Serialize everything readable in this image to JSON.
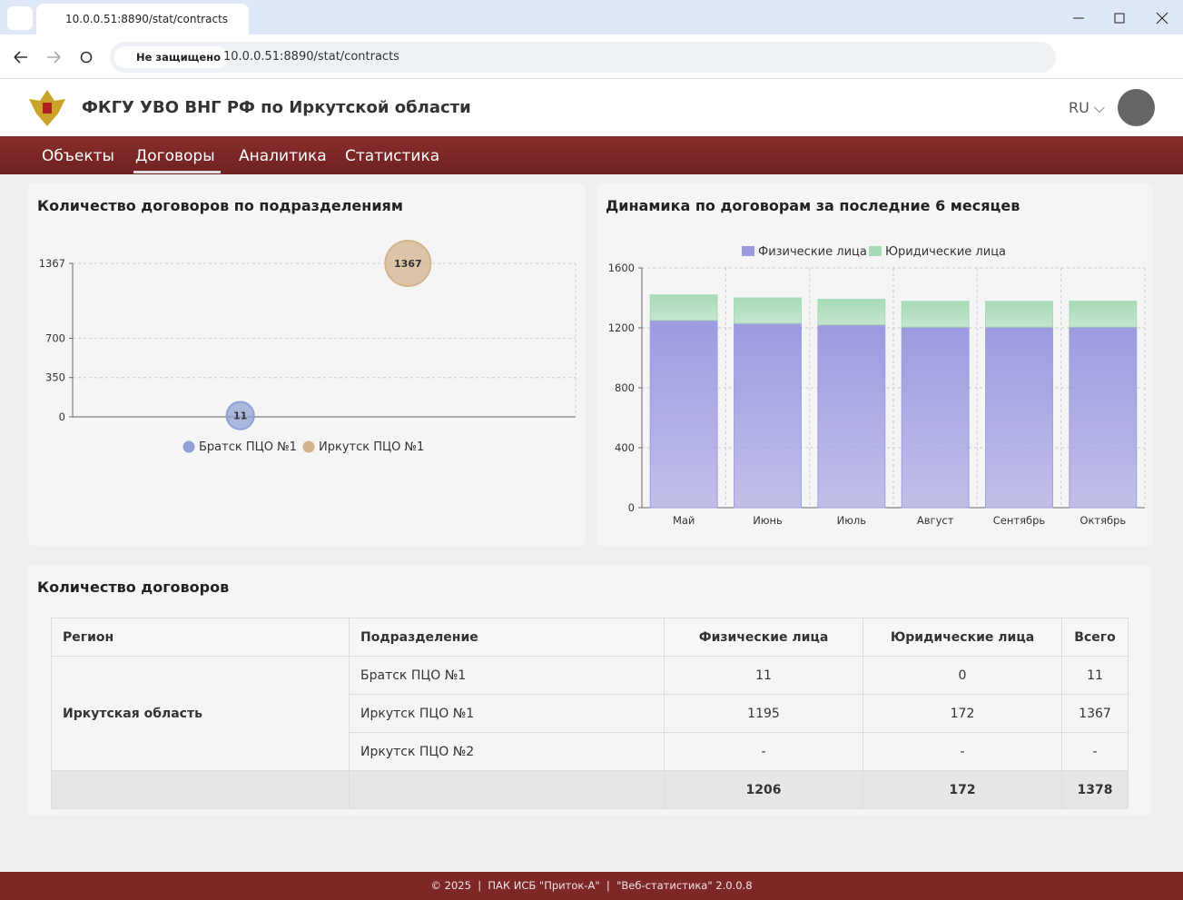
{
  "browser": {
    "tab_title": "10.0.0.51:8890/stat/contracts",
    "security": "Не защищено",
    "url": "10.0.0.51:8890/stat/contracts"
  },
  "header": {
    "title": "ФКГУ УВО ВНГ РФ по Иркутской области",
    "language": "RU"
  },
  "nav": {
    "items": [
      "Объекты",
      "Договоры",
      "Аналитика",
      "Статистика"
    ],
    "active": 1
  },
  "chart_data": [
    {
      "type": "bubble",
      "title": "Количество договоров по подразделениям",
      "categories": [
        null,
        null
      ],
      "series": [
        {
          "name": "Братск ПЦО №1",
          "color": "#8fa1d4",
          "values": [
            11,
            null
          ]
        },
        {
          "name": "Иркутск ПЦО №1",
          "color": "#d2b38c",
          "values": [
            null,
            1367
          ]
        }
      ],
      "ylim": [
        0,
        1367
      ],
      "yticks": [
        0,
        350,
        700,
        1367
      ],
      "grid": true,
      "legend": "bottom"
    },
    {
      "type": "stacked-bar",
      "title": "Динамика по договорам за последние 6 месяцев",
      "categories": [
        "Май",
        "Июнь",
        "Июль",
        "Август",
        "Сентябрь",
        "Октябрь"
      ],
      "series": [
        {
          "name": "Физические лица",
          "color": "#9d9be0",
          "values": [
            1250,
            1230,
            1220,
            1205,
            1205,
            1206
          ]
        },
        {
          "name": "Юридические лица",
          "color": "#a6dbb6",
          "values": [
            170,
            170,
            170,
            172,
            172,
            172
          ]
        }
      ],
      "ylim": [
        0,
        1600
      ],
      "yticks": [
        0,
        400,
        800,
        1200,
        1600
      ],
      "grid": true,
      "legend": "top"
    }
  ],
  "table": {
    "title": "Количество договоров",
    "columns": [
      "Регион",
      "Подразделение",
      "Физические лица",
      "Юридические лица",
      "Всего"
    ],
    "region": "Иркутская область",
    "rows": [
      [
        "Братск ПЦО №1",
        11,
        0,
        11
      ],
      [
        "Иркутск ПЦО №1",
        1195,
        172,
        1367
      ],
      [
        "Иркутск ПЦО №2",
        "-",
        "-",
        "-"
      ]
    ],
    "totals": [
      1206,
      172,
      1378
    ]
  },
  "footer": "© 2025  |  ПАК ИСБ \"Приток-А\"  |  \"Веб-статистика\" 2.0.0.8"
}
